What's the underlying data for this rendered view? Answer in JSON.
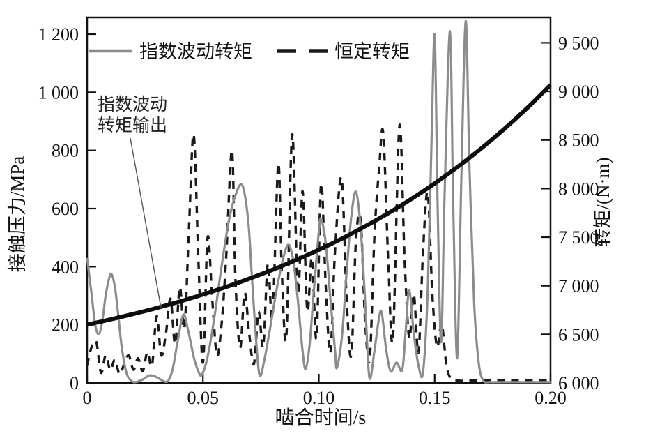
{
  "figure": {
    "background": "#ffffff",
    "border_color": "#111111",
    "colors": {
      "gray_curve": "#8c8c8c",
      "dashed_curve": "#1a1a1a",
      "torque_curve": "#0d0d0d",
      "leader_line": "#555555"
    }
  },
  "chart_data": {
    "type": "line",
    "title": "",
    "grid": false,
    "legend_position": "top-inside",
    "axes": {
      "x": {
        "title": "啮合时间/s",
        "range": [
          0,
          0.2
        ],
        "tick_values": [
          0,
          0.05,
          0.1,
          0.15,
          0.2
        ],
        "tick_labels": [
          "0",
          "0.05",
          "0.10",
          "0.15",
          "0.20"
        ]
      },
      "y_left": {
        "title": "接触压力/MPa",
        "range": [
          0,
          1200
        ],
        "tick_values": [
          0,
          200,
          400,
          600,
          800,
          1000,
          1200
        ],
        "tick_labels": [
          "0",
          "200",
          "400",
          "600",
          "800",
          "1 000",
          "1 200"
        ]
      },
      "y_right": {
        "title": "转矩/(N·m)",
        "range": [
          6000,
          9500
        ],
        "tick_values": [
          6000,
          6500,
          7000,
          7500,
          8000,
          8500,
          9000,
          9500
        ],
        "tick_labels": [
          "6 000",
          "6 500",
          "7 000",
          "7 500",
          "8 000",
          "8 500",
          "9 000",
          "9 500"
        ]
      }
    },
    "annotation": {
      "line1": "指数波动",
      "line2": "转矩输出",
      "points_to_series": "指数波动转矩输出"
    },
    "series": [
      {
        "name": "指数波动转矩",
        "axis": "left",
        "style": "solid",
        "color": "#8c8c8c",
        "width": 3.2,
        "dash": null,
        "z": 1,
        "points": [
          [
            0,
            430
          ],
          [
            0.002,
            300
          ],
          [
            0.0035,
            200
          ],
          [
            0.005,
            168
          ],
          [
            0.0065,
            210
          ],
          [
            0.008,
            300
          ],
          [
            0.0095,
            360
          ],
          [
            0.0105,
            375
          ],
          [
            0.012,
            330
          ],
          [
            0.0135,
            230
          ],
          [
            0.015,
            120
          ],
          [
            0.017,
            35
          ],
          [
            0.019,
            8
          ],
          [
            0.021,
            3
          ],
          [
            0.024,
            12
          ],
          [
            0.027,
            26
          ],
          [
            0.03,
            20
          ],
          [
            0.033,
            6
          ],
          [
            0.035,
            8
          ],
          [
            0.037,
            50
          ],
          [
            0.039,
            140
          ],
          [
            0.0415,
            235
          ],
          [
            0.0435,
            185
          ],
          [
            0.046,
            90
          ],
          [
            0.048,
            40
          ],
          [
            0.0495,
            28
          ],
          [
            0.052,
            90
          ],
          [
            0.055,
            230
          ],
          [
            0.058,
            400
          ],
          [
            0.061,
            550
          ],
          [
            0.064,
            645
          ],
          [
            0.067,
            680
          ],
          [
            0.0695,
            560
          ],
          [
            0.071,
            380
          ],
          [
            0.073,
            140
          ],
          [
            0.0745,
            25
          ],
          [
            0.0765,
            80
          ],
          [
            0.079,
            190
          ],
          [
            0.082,
            330
          ],
          [
            0.085,
            440
          ],
          [
            0.087,
            475
          ],
          [
            0.089,
            420
          ],
          [
            0.091,
            280
          ],
          [
            0.093,
            110
          ],
          [
            0.0943,
            48
          ],
          [
            0.096,
            130
          ],
          [
            0.098,
            330
          ],
          [
            0.1,
            520
          ],
          [
            0.101,
            565
          ],
          [
            0.103,
            480
          ],
          [
            0.105,
            290
          ],
          [
            0.107,
            110
          ],
          [
            0.1078,
            52
          ],
          [
            0.11,
            160
          ],
          [
            0.112,
            380
          ],
          [
            0.114,
            570
          ],
          [
            0.116,
            658
          ],
          [
            0.118,
            540
          ],
          [
            0.12,
            280
          ],
          [
            0.1218,
            20
          ],
          [
            0.124,
            110
          ],
          [
            0.126,
            225
          ],
          [
            0.1272,
            240
          ],
          [
            0.129,
            120
          ],
          [
            0.131,
            40
          ],
          [
            0.1335,
            70
          ],
          [
            0.136,
            45
          ],
          [
            0.1375,
            180
          ],
          [
            0.139,
            320
          ],
          [
            0.141,
            170
          ],
          [
            0.143,
            60
          ],
          [
            0.145,
            38
          ],
          [
            0.147,
            320
          ],
          [
            0.1487,
            850
          ],
          [
            0.15,
            1195
          ],
          [
            0.1513,
            600
          ],
          [
            0.1528,
            140
          ],
          [
            0.1543,
            650
          ],
          [
            0.1566,
            1210
          ],
          [
            0.158,
            620
          ],
          [
            0.1597,
            85
          ],
          [
            0.1615,
            700
          ],
          [
            0.1634,
            1245
          ],
          [
            0.165,
            750
          ],
          [
            0.167,
            280
          ],
          [
            0.169,
            70
          ],
          [
            0.171,
            8
          ],
          [
            0.174,
            3
          ],
          [
            0.18,
            3
          ],
          [
            0.19,
            3
          ],
          [
            0.2,
            3
          ]
        ]
      },
      {
        "name": "恒定转矩",
        "axis": "left",
        "style": "dashed",
        "color": "#1a1a1a",
        "width": 3.4,
        "dash": [
          11,
          9
        ],
        "z": 0,
        "points": [
          [
            0,
            60
          ],
          [
            0.002,
            125
          ],
          [
            0.004,
            140
          ],
          [
            0.006,
            35
          ],
          [
            0.008,
            95
          ],
          [
            0.01,
            45
          ],
          [
            0.012,
            80
          ],
          [
            0.014,
            30
          ],
          [
            0.016,
            65
          ],
          [
            0.018,
            95
          ],
          [
            0.02,
            45
          ],
          [
            0.022,
            85
          ],
          [
            0.024,
            40
          ],
          [
            0.026,
            105
          ],
          [
            0.028,
            60
          ],
          [
            0.03,
            230
          ],
          [
            0.032,
            95
          ],
          [
            0.034,
            170
          ],
          [
            0.036,
            290
          ],
          [
            0.038,
            135
          ],
          [
            0.04,
            330
          ],
          [
            0.042,
            190
          ],
          [
            0.044,
            540
          ],
          [
            0.046,
            855
          ],
          [
            0.048,
            430
          ],
          [
            0.05,
            70
          ],
          [
            0.052,
            500
          ],
          [
            0.054,
            290
          ],
          [
            0.056,
            95
          ],
          [
            0.058,
            200
          ],
          [
            0.06,
            430
          ],
          [
            0.0625,
            800
          ],
          [
            0.064,
            360
          ],
          [
            0.066,
            120
          ],
          [
            0.068,
            310
          ],
          [
            0.07,
            165
          ],
          [
            0.072,
            65
          ],
          [
            0.074,
            245
          ],
          [
            0.076,
            125
          ],
          [
            0.078,
            410
          ],
          [
            0.08,
            230
          ],
          [
            0.0825,
            755
          ],
          [
            0.084,
            390
          ],
          [
            0.086,
            160
          ],
          [
            0.0885,
            855
          ],
          [
            0.091,
            310
          ],
          [
            0.093,
            660
          ],
          [
            0.095,
            250
          ],
          [
            0.097,
            430
          ],
          [
            0.099,
            155
          ],
          [
            0.101,
            685
          ],
          [
            0.103,
            330
          ],
          [
            0.105,
            105
          ],
          [
            0.107,
            455
          ],
          [
            0.1098,
            705
          ],
          [
            0.112,
            290
          ],
          [
            0.114,
            95
          ],
          [
            0.116,
            485
          ],
          [
            0.118,
            565
          ],
          [
            0.12,
            210
          ],
          [
            0.122,
            85
          ],
          [
            0.124,
            505
          ],
          [
            0.126,
            735
          ],
          [
            0.1278,
            860
          ],
          [
            0.13,
            410
          ],
          [
            0.132,
            155
          ],
          [
            0.1348,
            885
          ],
          [
            0.137,
            430
          ],
          [
            0.139,
            155
          ],
          [
            0.141,
            305
          ],
          [
            0.143,
            105
          ],
          [
            0.145,
            455
          ],
          [
            0.147,
            655
          ],
          [
            0.149,
            305
          ],
          [
            0.151,
            125
          ],
          [
            0.153,
            205
          ],
          [
            0.155,
            65
          ],
          [
            0.157,
            15
          ],
          [
            0.16,
            8
          ],
          [
            0.165,
            8
          ],
          [
            0.17,
            8
          ],
          [
            0.175,
            8
          ],
          [
            0.18,
            8
          ],
          [
            0.185,
            8
          ],
          [
            0.19,
            8
          ],
          [
            0.195,
            8
          ],
          [
            0.2,
            8
          ]
        ]
      },
      {
        "name": "指数波动转矩输出",
        "axis": "right",
        "style": "solid-thick",
        "color": "#0d0d0d",
        "width": 6,
        "dash": null,
        "z": 2,
        "points": [
          [
            0,
            6600
          ],
          [
            0.01,
            6653
          ],
          [
            0.02,
            6710
          ],
          [
            0.03,
            6771
          ],
          [
            0.04,
            6838
          ],
          [
            0.05,
            6910
          ],
          [
            0.06,
            6988
          ],
          [
            0.07,
            7073
          ],
          [
            0.08,
            7164
          ],
          [
            0.09,
            7263
          ],
          [
            0.1,
            7370
          ],
          [
            0.11,
            7486
          ],
          [
            0.12,
            7612
          ],
          [
            0.13,
            7747
          ],
          [
            0.14,
            7894
          ],
          [
            0.15,
            8053
          ],
          [
            0.16,
            8225
          ],
          [
            0.17,
            8411
          ],
          [
            0.18,
            8613
          ],
          [
            0.19,
            8831
          ],
          [
            0.2,
            9067
          ]
        ]
      }
    ]
  }
}
